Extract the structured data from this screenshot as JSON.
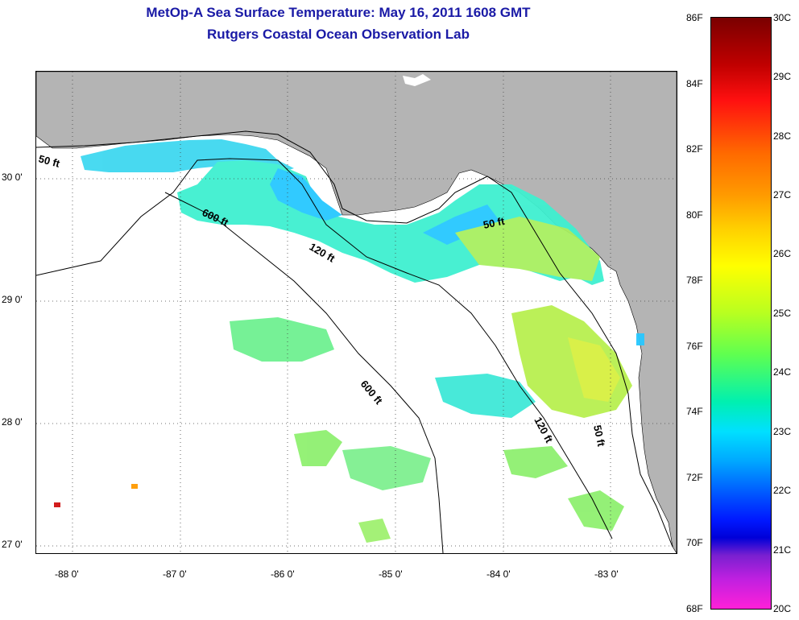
{
  "title": {
    "line1": "MetOp-A Sea Surface Temperature:  May 16, 2011 1608 GMT",
    "line2": "Rutgers Coastal Ocean Observation Lab"
  },
  "map": {
    "land_color": "#b4b4b4",
    "lat_labels": [
      "30 0'",
      "29 0'",
      "28 0'",
      "27 0'"
    ],
    "lon_labels": [
      "-88 0'",
      "-87 0'",
      "-86 0'",
      "-85 0'",
      "-84 0'",
      "-83 0'"
    ],
    "contour_labels": [
      "50 ft",
      "600 ft",
      "120 ft",
      "50 ft",
      "600 ft",
      "120 ft",
      "50 ft"
    ]
  },
  "colorbar": {
    "fahrenheit": [
      "86F",
      "84F",
      "82F",
      "80F",
      "78F",
      "76F",
      "74F",
      "72F",
      "70F",
      "68F"
    ],
    "celsius": [
      "30C",
      "29C",
      "28C",
      "27C",
      "26C",
      "25C",
      "24C",
      "23C",
      "22C",
      "21C",
      "20C"
    ]
  }
}
